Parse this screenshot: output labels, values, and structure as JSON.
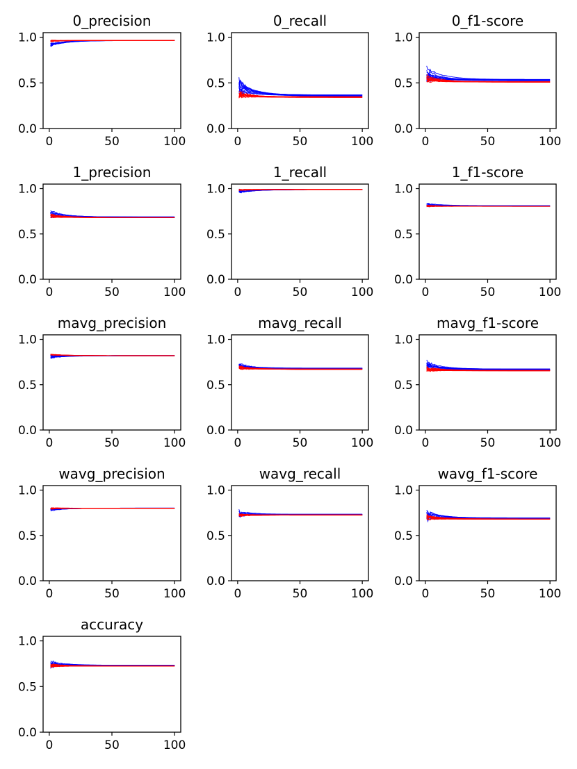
{
  "figure": {
    "colors": {
      "series_a": "#0000ff",
      "series_b": "#ff0000",
      "axes": "#000000"
    }
  },
  "chart_data": [
    {
      "type": "line",
      "title": "0_precision",
      "xlim": [
        0,
        100
      ],
      "ylim": [
        0,
        1.05
      ],
      "xticks": [
        "0",
        "50",
        "100"
      ],
      "yticks": [
        "0.0",
        "0.5",
        "1.0"
      ],
      "series": [
        {
          "name": "blue-runs",
          "color": "#0000ff",
          "start": 0.92,
          "end": 0.965,
          "spread": 0.03
        },
        {
          "name": "red-runs",
          "color": "#ff0000",
          "start": 0.96,
          "end": 0.965,
          "spread": 0.012
        }
      ]
    },
    {
      "type": "line",
      "title": "0_recall",
      "xlim": [
        0,
        100
      ],
      "ylim": [
        0,
        1.05
      ],
      "xticks": [
        "0",
        "50",
        "100"
      ],
      "yticks": [
        "0.0",
        "0.5",
        "1.0"
      ],
      "series": [
        {
          "name": "blue-runs",
          "color": "#0000ff",
          "start": 0.46,
          "end": 0.36,
          "spread": 0.14
        },
        {
          "name": "red-runs",
          "color": "#ff0000",
          "start": 0.38,
          "end": 0.345,
          "spread": 0.08
        }
      ]
    },
    {
      "type": "line",
      "title": "0_f1-score",
      "xlim": [
        0,
        100
      ],
      "ylim": [
        0,
        1.05
      ],
      "xticks": [
        "0",
        "50",
        "100"
      ],
      "yticks": [
        "0.0",
        "0.5",
        "1.0"
      ],
      "series": [
        {
          "name": "blue-runs",
          "color": "#0000ff",
          "start": 0.6,
          "end": 0.53,
          "spread": 0.13
        },
        {
          "name": "red-runs",
          "color": "#ff0000",
          "start": 0.55,
          "end": 0.51,
          "spread": 0.06
        }
      ]
    },
    {
      "type": "line",
      "title": "1_precision",
      "xlim": [
        0,
        100
      ],
      "ylim": [
        0,
        1.05
      ],
      "xticks": [
        "0",
        "50",
        "100"
      ],
      "yticks": [
        "0.0",
        "0.5",
        "1.0"
      ],
      "series": [
        {
          "name": "blue-runs",
          "color": "#0000ff",
          "start": 0.72,
          "end": 0.685,
          "spread": 0.06
        },
        {
          "name": "red-runs",
          "color": "#ff0000",
          "start": 0.7,
          "end": 0.68,
          "spread": 0.03
        }
      ]
    },
    {
      "type": "line",
      "title": "1_recall",
      "xlim": [
        0,
        100
      ],
      "ylim": [
        0,
        1.05
      ],
      "xticks": [
        "0",
        "50",
        "100"
      ],
      "yticks": [
        "0.0",
        "0.5",
        "1.0"
      ],
      "series": [
        {
          "name": "blue-runs",
          "color": "#0000ff",
          "start": 0.97,
          "end": 0.99,
          "spread": 0.03
        },
        {
          "name": "red-runs",
          "color": "#ff0000",
          "start": 0.985,
          "end": 0.99,
          "spread": 0.01
        }
      ]
    },
    {
      "type": "line",
      "title": "1_f1-score",
      "xlim": [
        0,
        100
      ],
      "ylim": [
        0,
        1.05
      ],
      "xticks": [
        "0",
        "50",
        "100"
      ],
      "yticks": [
        "0.0",
        "0.5",
        "1.0"
      ],
      "series": [
        {
          "name": "blue-runs",
          "color": "#0000ff",
          "start": 0.82,
          "end": 0.81,
          "spread": 0.03
        },
        {
          "name": "red-runs",
          "color": "#ff0000",
          "start": 0.81,
          "end": 0.805,
          "spread": 0.015
        }
      ]
    },
    {
      "type": "line",
      "title": "mavg_precision",
      "xlim": [
        0,
        100
      ],
      "ylim": [
        0,
        1.05
      ],
      "xticks": [
        "0",
        "50",
        "100"
      ],
      "yticks": [
        "0.0",
        "0.5",
        "1.0"
      ],
      "series": [
        {
          "name": "blue-runs",
          "color": "#0000ff",
          "start": 0.81,
          "end": 0.82,
          "spread": 0.025
        },
        {
          "name": "red-runs",
          "color": "#ff0000",
          "start": 0.83,
          "end": 0.82,
          "spread": 0.012
        }
      ]
    },
    {
      "type": "line",
      "title": "mavg_recall",
      "xlim": [
        0,
        100
      ],
      "ylim": [
        0,
        1.05
      ],
      "xticks": [
        "0",
        "50",
        "100"
      ],
      "yticks": [
        "0.0",
        "0.5",
        "1.0"
      ],
      "series": [
        {
          "name": "blue-runs",
          "color": "#0000ff",
          "start": 0.71,
          "end": 0.68,
          "spread": 0.07
        },
        {
          "name": "red-runs",
          "color": "#ff0000",
          "start": 0.68,
          "end": 0.67,
          "spread": 0.04
        }
      ]
    },
    {
      "type": "line",
      "title": "mavg_f1-score",
      "xlim": [
        0,
        100
      ],
      "ylim": [
        0,
        1.05
      ],
      "xticks": [
        "0",
        "50",
        "100"
      ],
      "yticks": [
        "0.0",
        "0.5",
        "1.0"
      ],
      "series": [
        {
          "name": "blue-runs",
          "color": "#0000ff",
          "start": 0.71,
          "end": 0.67,
          "spread": 0.08
        },
        {
          "name": "red-runs",
          "color": "#ff0000",
          "start": 0.67,
          "end": 0.655,
          "spread": 0.05
        }
      ]
    },
    {
      "type": "line",
      "title": "wavg_precision",
      "xlim": [
        0,
        100
      ],
      "ylim": [
        0,
        1.05
      ],
      "xticks": [
        "0",
        "50",
        "100"
      ],
      "yticks": [
        "0.0",
        "0.5",
        "1.0"
      ],
      "series": [
        {
          "name": "blue-runs",
          "color": "#0000ff",
          "start": 0.79,
          "end": 0.8,
          "spread": 0.025
        },
        {
          "name": "red-runs",
          "color": "#ff0000",
          "start": 0.8,
          "end": 0.8,
          "spread": 0.015
        }
      ]
    },
    {
      "type": "line",
      "title": "wavg_recall",
      "xlim": [
        0,
        100
      ],
      "ylim": [
        0,
        1.05
      ],
      "xticks": [
        "0",
        "50",
        "100"
      ],
      "yticks": [
        "0.0",
        "0.5",
        "1.0"
      ],
      "series": [
        {
          "name": "blue-runs",
          "color": "#0000ff",
          "start": 0.75,
          "end": 0.73,
          "spread": 0.06
        },
        {
          "name": "red-runs",
          "color": "#ff0000",
          "start": 0.73,
          "end": 0.725,
          "spread": 0.03
        }
      ]
    },
    {
      "type": "line",
      "title": "wavg_f1-score",
      "xlim": [
        0,
        100
      ],
      "ylim": [
        0,
        1.05
      ],
      "xticks": [
        "0",
        "50",
        "100"
      ],
      "yticks": [
        "0.0",
        "0.5",
        "1.0"
      ],
      "series": [
        {
          "name": "blue-runs",
          "color": "#0000ff",
          "start": 0.72,
          "end": 0.69,
          "spread": 0.08
        },
        {
          "name": "red-runs",
          "color": "#ff0000",
          "start": 0.7,
          "end": 0.68,
          "spread": 0.04
        }
      ]
    },
    {
      "type": "line",
      "title": "accuracy",
      "xlim": [
        0,
        100
      ],
      "ylim": [
        0,
        1.05
      ],
      "xticks": [
        "0",
        "50",
        "100"
      ],
      "yticks": [
        "0.0",
        "0.5",
        "1.0"
      ],
      "series": [
        {
          "name": "blue-runs",
          "color": "#0000ff",
          "start": 0.75,
          "end": 0.73,
          "spread": 0.06
        },
        {
          "name": "red-runs",
          "color": "#ff0000",
          "start": 0.73,
          "end": 0.725,
          "spread": 0.03
        }
      ]
    }
  ]
}
